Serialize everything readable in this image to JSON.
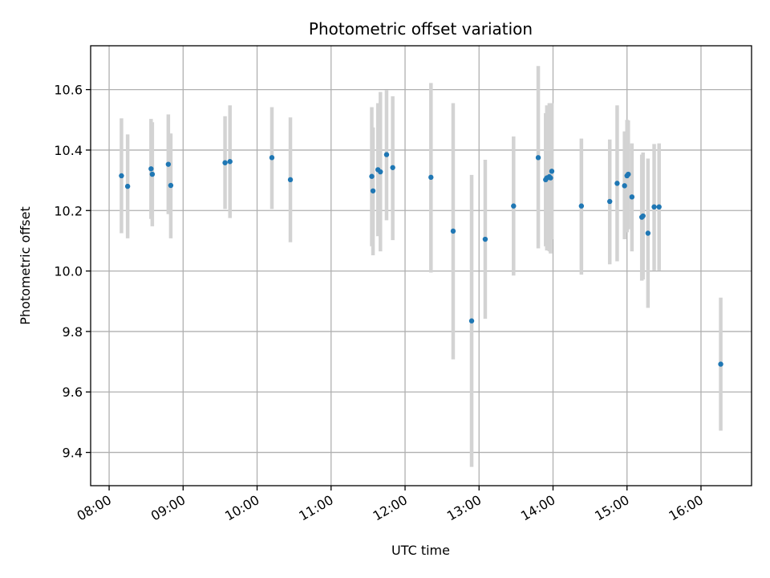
{
  "chart_data": {
    "type": "scatter",
    "title": "Photometric offset variation",
    "xlabel": "UTC time",
    "ylabel": "Photometric offset",
    "xlim": [
      "07:45",
      "16:41"
    ],
    "ylim": [
      9.29,
      10.745
    ],
    "grid": true,
    "xticks": [
      "08:00",
      "09:00",
      "10:00",
      "11:00",
      "12:00",
      "13:00",
      "14:00",
      "15:00",
      "16:00"
    ],
    "yticks": [
      "9.4",
      "9.6",
      "9.8",
      "10.0",
      "10.2",
      "10.4",
      "10.6"
    ],
    "colors": {
      "point": "#1f77b4",
      "errorbar": "#d3d3d3",
      "grid": "#b0b0b0"
    },
    "series": [
      {
        "points": [
          {
            "t": "08:10",
            "y": 10.315,
            "lo": 10.125,
            "hi": 10.505
          },
          {
            "t": "08:15",
            "y": 10.28,
            "lo": 10.108,
            "hi": 10.452
          },
          {
            "t": "08:34",
            "y": 10.338,
            "lo": 10.172,
            "hi": 10.503
          },
          {
            "t": "08:35",
            "y": 10.32,
            "lo": 10.148,
            "hi": 10.492
          },
          {
            "t": "08:48",
            "y": 10.353,
            "lo": 10.188,
            "hi": 10.518
          },
          {
            "t": "08:50",
            "y": 10.283,
            "lo": 10.108,
            "hi": 10.455
          },
          {
            "t": "09:34",
            "y": 10.358,
            "lo": 10.205,
            "hi": 10.512
          },
          {
            "t": "09:38",
            "y": 10.362,
            "lo": 10.175,
            "hi": 10.548
          },
          {
            "t": "10:12",
            "y": 10.375,
            "lo": 10.205,
            "hi": 10.542
          },
          {
            "t": "10:27",
            "y": 10.302,
            "lo": 10.095,
            "hi": 10.508
          },
          {
            "t": "11:33",
            "y": 10.313,
            "lo": 10.082,
            "hi": 10.542
          },
          {
            "t": "11:34",
            "y": 10.265,
            "lo": 10.052,
            "hi": 10.475
          },
          {
            "t": "11:38",
            "y": 10.335,
            "lo": 10.115,
            "hi": 10.555
          },
          {
            "t": "11:40",
            "y": 10.328,
            "lo": 10.065,
            "hi": 10.592
          },
          {
            "t": "11:45",
            "y": 10.385,
            "lo": 10.168,
            "hi": 10.598
          },
          {
            "t": "11:50",
            "y": 10.342,
            "lo": 10.102,
            "hi": 10.578
          },
          {
            "t": "12:21",
            "y": 10.31,
            "lo": 9.995,
            "hi": 10.622
          },
          {
            "t": "12:39",
            "y": 10.132,
            "lo": 9.708,
            "hi": 10.555
          },
          {
            "t": "12:54",
            "y": 9.835,
            "lo": 9.352,
            "hi": 10.318
          },
          {
            "t": "13:05",
            "y": 10.105,
            "lo": 9.842,
            "hi": 10.368
          },
          {
            "t": "13:28",
            "y": 10.215,
            "lo": 9.985,
            "hi": 10.445
          },
          {
            "t": "13:48",
            "y": 10.375,
            "lo": 10.075,
            "hi": 10.678
          },
          {
            "t": "13:54",
            "y": 10.302,
            "lo": 10.082,
            "hi": 10.522
          },
          {
            "t": "13:55",
            "y": 10.308,
            "lo": 10.068,
            "hi": 10.548
          },
          {
            "t": "13:57",
            "y": 10.312,
            "lo": 10.065,
            "hi": 10.555
          },
          {
            "t": "13:58",
            "y": 10.308,
            "lo": 10.058,
            "hi": 10.555
          },
          {
            "t": "13:59",
            "y": 10.33,
            "lo": 10.105,
            "hi": 10.555
          },
          {
            "t": "14:23",
            "y": 10.215,
            "lo": 9.988,
            "hi": 10.438
          },
          {
            "t": "14:46",
            "y": 10.23,
            "lo": 10.022,
            "hi": 10.435
          },
          {
            "t": "14:52",
            "y": 10.29,
            "lo": 10.032,
            "hi": 10.548
          },
          {
            "t": "14:58",
            "y": 10.282,
            "lo": 10.105,
            "hi": 10.462
          },
          {
            "t": "15:00",
            "y": 10.315,
            "lo": 10.128,
            "hi": 10.5
          },
          {
            "t": "15:01",
            "y": 10.32,
            "lo": 10.138,
            "hi": 10.498
          },
          {
            "t": "15:04",
            "y": 10.245,
            "lo": 10.065,
            "hi": 10.422
          },
          {
            "t": "15:12",
            "y": 10.178,
            "lo": 9.968,
            "hi": 10.385
          },
          {
            "t": "15:13",
            "y": 10.182,
            "lo": 9.972,
            "hi": 10.392
          },
          {
            "t": "15:17",
            "y": 10.125,
            "lo": 9.878,
            "hi": 10.372
          },
          {
            "t": "15:22",
            "y": 10.212,
            "lo": 10.002,
            "hi": 10.42
          },
          {
            "t": "15:26",
            "y": 10.212,
            "lo": 10.002,
            "hi": 10.422
          },
          {
            "t": "16:16",
            "y": 9.692,
            "lo": 9.472,
            "hi": 9.912
          }
        ]
      }
    ]
  }
}
